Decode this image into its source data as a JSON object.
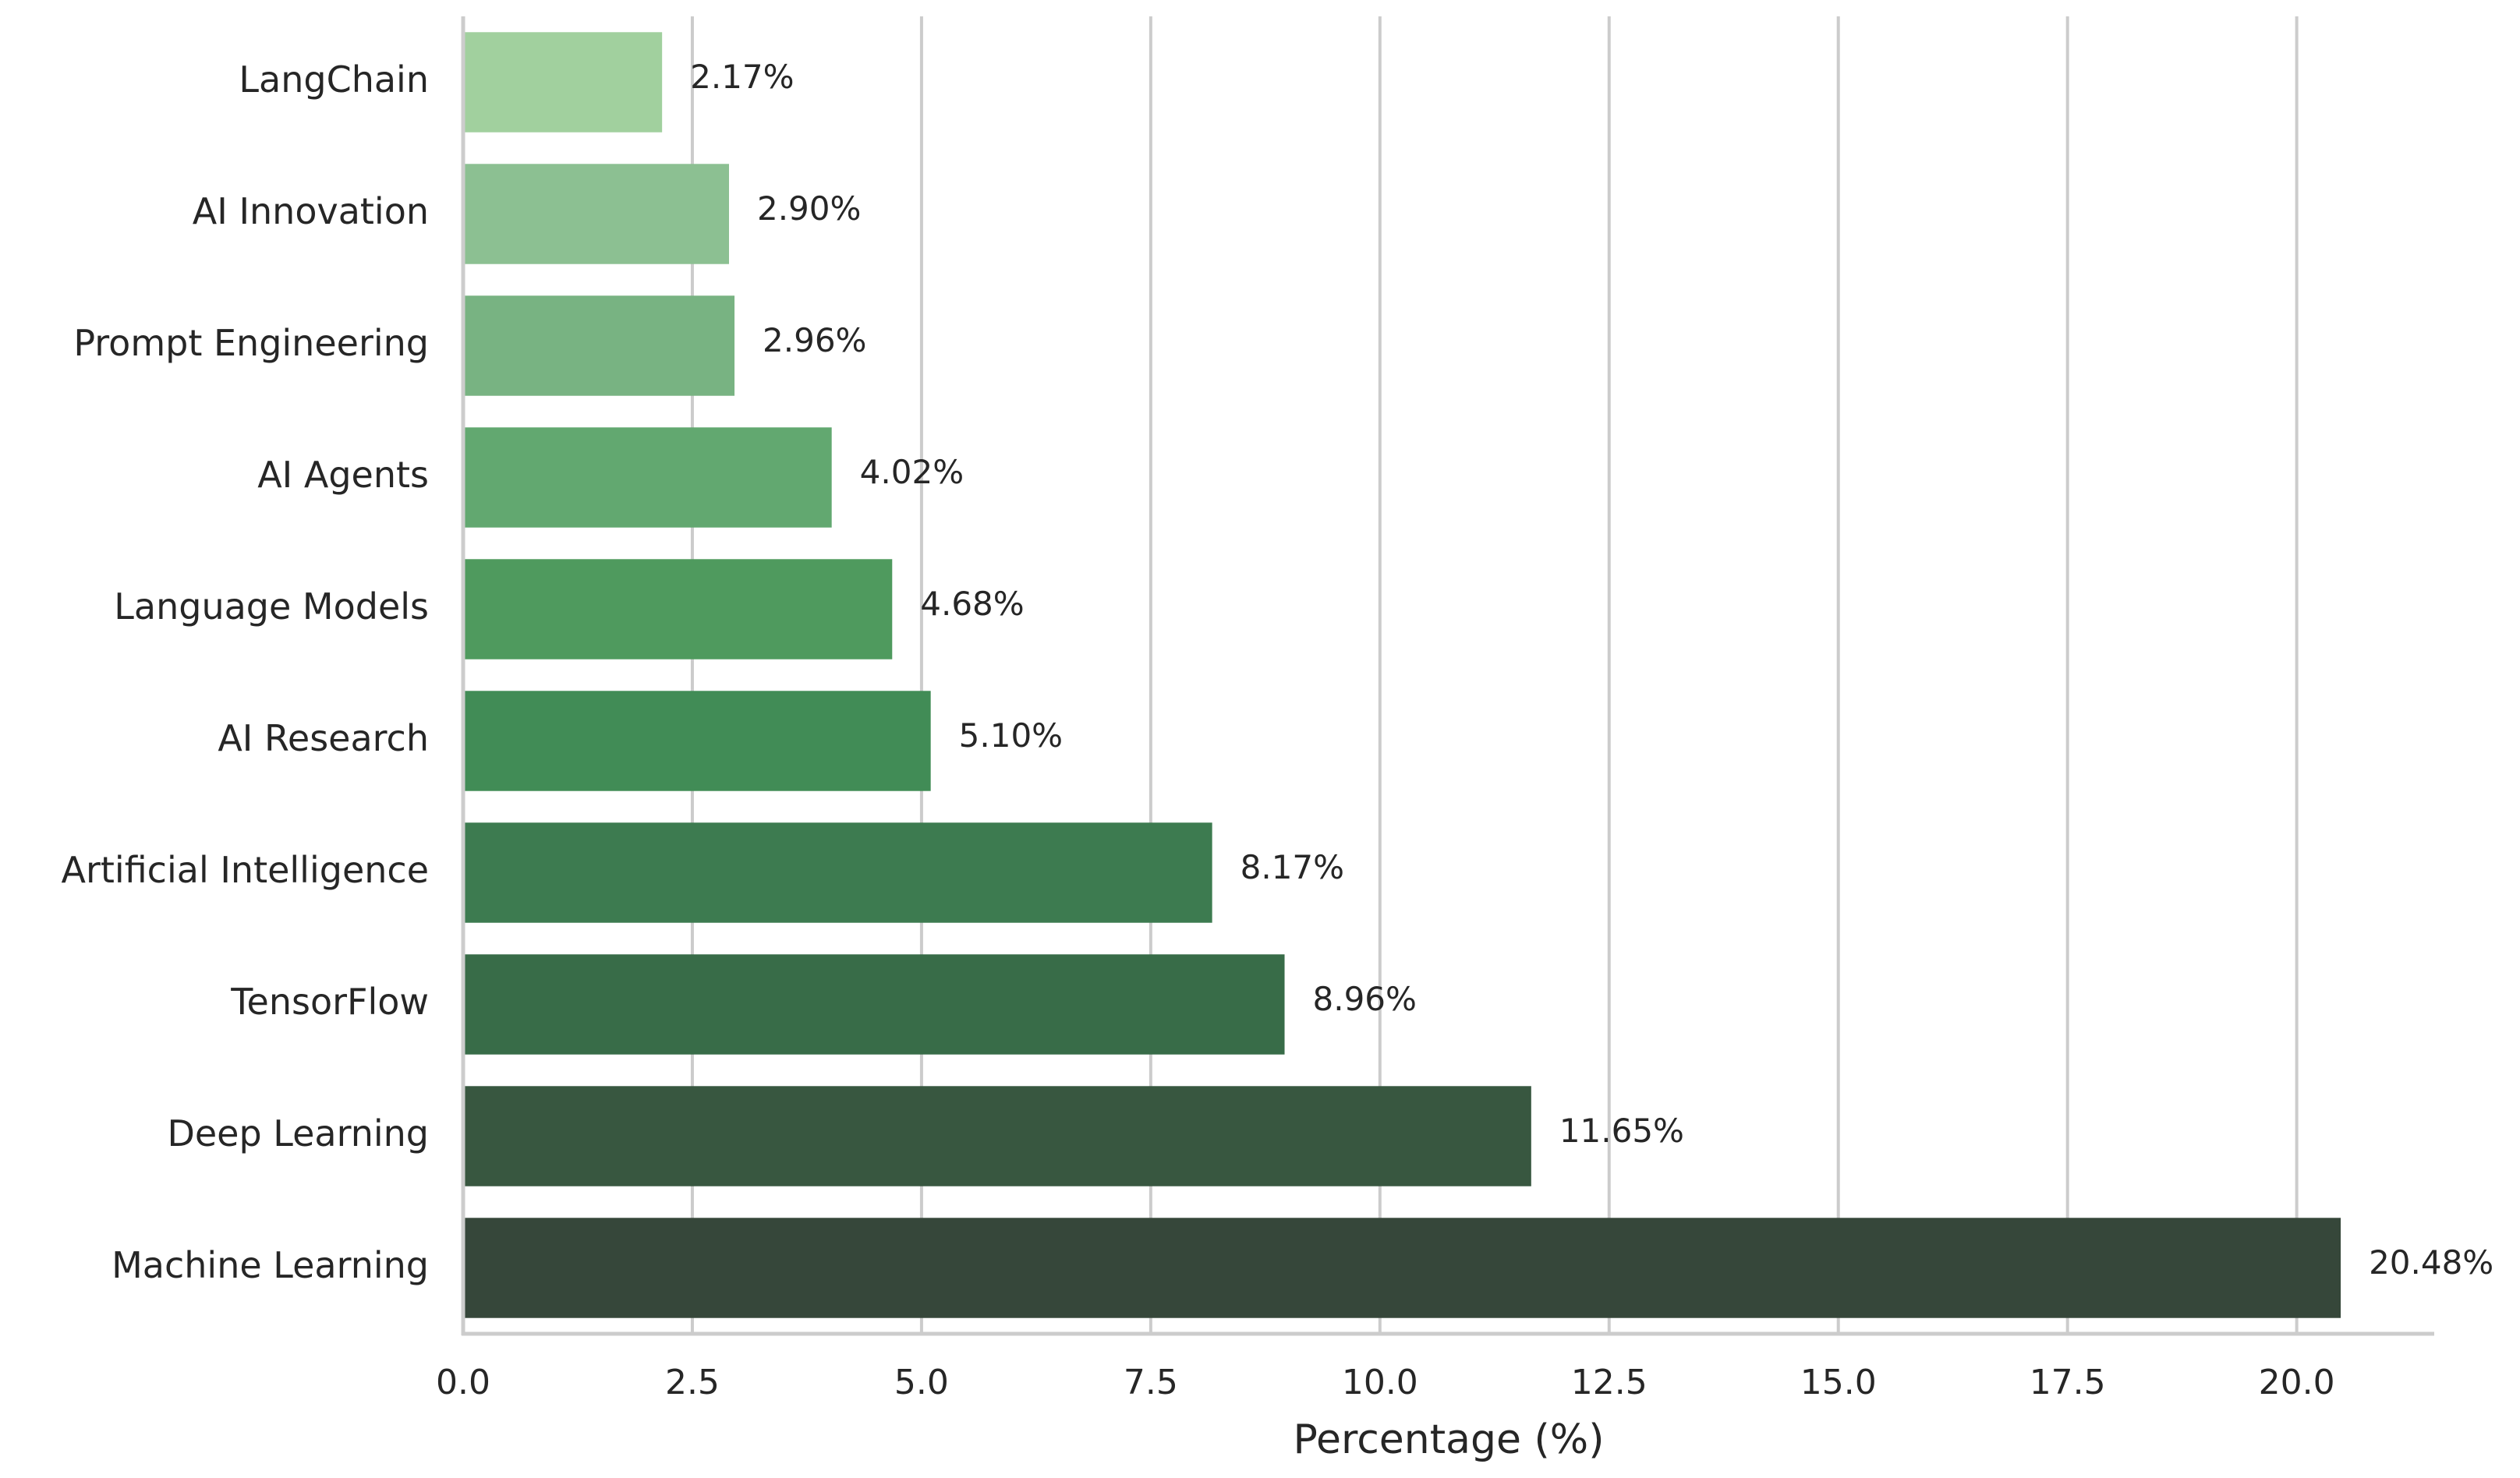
{
  "chart_data": {
    "type": "bar",
    "orientation": "horizontal",
    "x_label": "Percentage (%)",
    "categories": [
      "LangChain",
      "AI Innovation",
      "Prompt Engineering",
      "AI Agents",
      "Language Models",
      "AI Research",
      "Artificial Intelligence",
      "TensorFlow",
      "Deep Learning",
      "Machine Learning"
    ],
    "values": [
      2.17,
      2.9,
      2.96,
      4.02,
      4.68,
      5.1,
      8.17,
      8.96,
      11.65,
      20.48
    ],
    "value_labels": [
      "2.17%",
      "2.90%",
      "2.96%",
      "4.02%",
      "4.68%",
      "5.10%",
      "8.17%",
      "8.96%",
      "11.65%",
      "20.48%"
    ],
    "colors": [
      "#a1d09e",
      "#8cc092",
      "#78b382",
      "#62a870",
      "#4f9a5e",
      "#418c56",
      "#3d7b50",
      "#386c48",
      "#385740",
      "#36473a"
    ],
    "xlim": [
      0,
      21.5
    ],
    "xticks": [
      {
        "value": 0,
        "label": "0.0"
      },
      {
        "value": 2.5,
        "label": "2.5"
      },
      {
        "value": 5,
        "label": "5.0"
      },
      {
        "value": 7.5,
        "label": "7.5"
      },
      {
        "value": 10,
        "label": "10.0"
      },
      {
        "value": 12.5,
        "label": "12.5"
      },
      {
        "value": 15,
        "label": "15.0"
      },
      {
        "value": 17.5,
        "label": "17.5"
      },
      {
        "value": 20,
        "label": "20.0"
      }
    ],
    "grid": true
  }
}
